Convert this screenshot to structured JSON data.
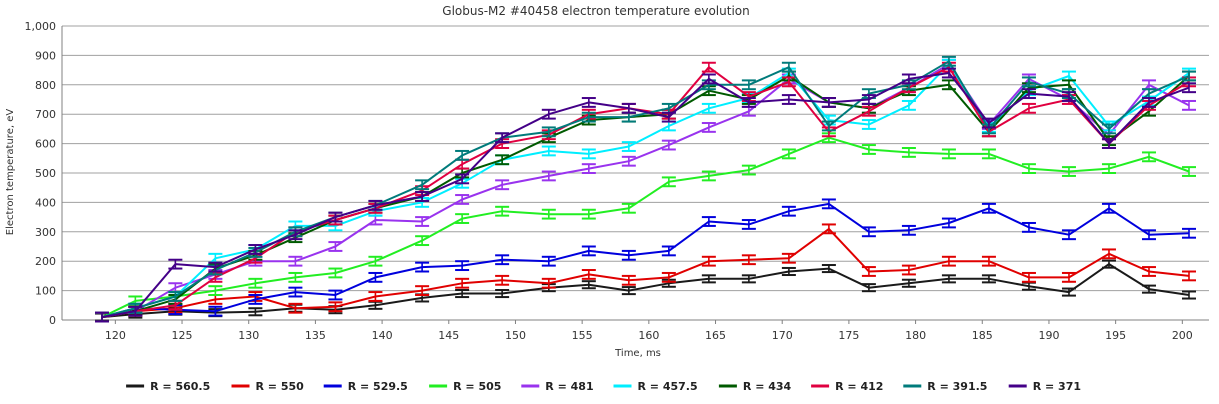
{
  "chart_data": {
    "type": "line",
    "title": "Globus-M2 #40458 electron temperature evolution",
    "xlabel": "Time, ms",
    "ylabel": "Electron temperature, eV",
    "xlim": [
      116,
      202
    ],
    "ylim": [
      0,
      1000
    ],
    "x_ticks": [
      "120",
      "125",
      "130",
      "135",
      "140",
      "145",
      "150",
      "155",
      "160",
      "165",
      "170",
      "175",
      "180",
      "185",
      "190",
      "195",
      "200"
    ],
    "y_ticks": [
      "0",
      "100",
      "200",
      "300",
      "400",
      "500",
      "600",
      "700",
      "800",
      "900",
      "1,000"
    ],
    "grid": "horizontal",
    "legend_position": "bottom",
    "error_bars": true,
    "x": [
      119,
      121.5,
      124.5,
      127.5,
      130.5,
      133.5,
      136.5,
      139.5,
      143,
      146,
      149,
      152.5,
      155.5,
      158.5,
      161.5,
      164.5,
      167.5,
      170.5,
      173.5,
      176.5,
      179.5,
      182.5,
      185.5,
      188.5,
      191.5,
      194.5,
      197.5,
      200.5
    ],
    "series": [
      {
        "name": "R = 560.5",
        "color": "#1a1a1a",
        "error": 12,
        "values": [
          10,
          20,
          30,
          25,
          28,
          40,
          35,
          50,
          75,
          90,
          90,
          110,
          120,
          100,
          125,
          140,
          140,
          165,
          175,
          110,
          125,
          140,
          140,
          115,
          95,
          190,
          105,
          85
        ]
      },
      {
        "name": "R = 550",
        "color": "#e00000",
        "error": 15,
        "values": [
          10,
          30,
          40,
          70,
          80,
          40,
          45,
          80,
          100,
          125,
          135,
          125,
          155,
          135,
          145,
          200,
          205,
          210,
          310,
          165,
          170,
          200,
          200,
          145,
          145,
          225,
          165,
          150
        ]
      },
      {
        "name": "R = 529.5",
        "color": "#0000dd",
        "error": 15,
        "values": [
          10,
          40,
          35,
          30,
          70,
          95,
          85,
          145,
          180,
          185,
          205,
          200,
          235,
          220,
          235,
          335,
          325,
          370,
          395,
          300,
          305,
          330,
          380,
          315,
          290,
          380,
          290,
          295
        ]
      },
      {
        "name": "R = 505",
        "color": "#22ee22",
        "error": 15,
        "values": [
          10,
          65,
          80,
          100,
          125,
          145,
          160,
          200,
          270,
          345,
          370,
          360,
          360,
          380,
          470,
          490,
          510,
          565,
          620,
          580,
          570,
          565,
          565,
          515,
          505,
          515,
          555,
          505
        ]
      },
      {
        "name": "R = 481",
        "color": "#9933ee",
        "error": 15,
        "values": [
          10,
          30,
          110,
          155,
          200,
          200,
          250,
          340,
          335,
          410,
          460,
          490,
          515,
          540,
          595,
          655,
          710,
          820,
          740,
          720,
          790,
          870,
          665,
          820,
          750,
          630,
          800,
          730
        ]
      },
      {
        "name": "R = 457.5",
        "color": "#00eeff",
        "error": 15,
        "values": [
          10,
          40,
          80,
          210,
          240,
          320,
          320,
          370,
          400,
          465,
          545,
          575,
          565,
          590,
          660,
          720,
          755,
          840,
          680,
          665,
          730,
          870,
          655,
          780,
          830,
          660,
          745,
          840
        ]
      },
      {
        "name": "R = 434",
        "color": "#005a00",
        "error": 15,
        "values": [
          10,
          30,
          70,
          175,
          220,
          280,
          340,
          380,
          420,
          500,
          545,
          620,
          680,
          690,
          700,
          780,
          750,
          830,
          740,
          720,
          780,
          800,
          640,
          790,
          800,
          610,
          710,
          830
        ]
      },
      {
        "name": "R = 412",
        "color": "#e00040",
        "error": 15,
        "values": [
          10,
          30,
          50,
          145,
          210,
          300,
          340,
          380,
          440,
          530,
          600,
          630,
          700,
          720,
          700,
          860,
          760,
          810,
          640,
          710,
          790,
          860,
          640,
          720,
          750,
          600,
          730,
          810
        ]
      },
      {
        "name": "R = 391.5",
        "color": "#007b7b",
        "error": 15,
        "values": [
          10,
          40,
          80,
          170,
          230,
          300,
          350,
          390,
          460,
          560,
          620,
          640,
          690,
          690,
          720,
          800,
          800,
          860,
          660,
          770,
          800,
          880,
          650,
          810,
          770,
          650,
          770,
          830
        ]
      },
      {
        "name": "R = 371",
        "color": "#440088",
        "error": 15,
        "values": [
          10,
          30,
          190,
          180,
          240,
          290,
          350,
          390,
          420,
          480,
          620,
          700,
          740,
          720,
          690,
          820,
          740,
          750,
          740,
          750,
          820,
          840,
          670,
          770,
          760,
          600,
          740,
          790
        ]
      }
    ]
  }
}
